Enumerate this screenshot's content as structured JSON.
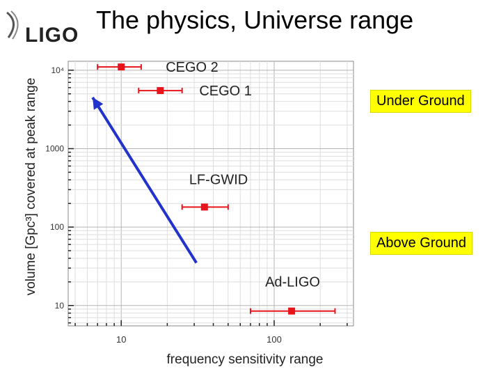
{
  "slide": {
    "title": "The physics, Universe range",
    "logo_text": "LIGO"
  },
  "tags": {
    "under_ground": "Under Ground",
    "above_ground": "Above Ground"
  },
  "colors": {
    "marker": "#e8141b",
    "arrow": "#2233cc",
    "tag_bg": "#ffff00"
  },
  "chart_data": {
    "type": "scatter",
    "title": "",
    "xlabel": "frequency sensitivity range",
    "ylabel": "volume [Gpc³] covered at peak range",
    "xscale": "log",
    "yscale": "log",
    "xlim": [
      4.5,
      330
    ],
    "ylim": [
      5.5,
      13000
    ],
    "x_ticks": [
      {
        "value": 10,
        "label": "10"
      },
      {
        "value": 100,
        "label": "100"
      }
    ],
    "y_ticks": [
      {
        "value": 10,
        "label": "10"
      },
      {
        "value": 100,
        "label": "100"
      },
      {
        "value": 1000,
        "label": "1000"
      },
      {
        "value": 10000,
        "label": "10⁴"
      }
    ],
    "grid": true,
    "points": [
      {
        "name": "CEGO 2",
        "x": 10,
        "y": 11000,
        "xerr": [
          7,
          13.5
        ]
      },
      {
        "name": "CEGO 1",
        "x": 18,
        "y": 5500,
        "xerr": [
          13,
          25
        ]
      },
      {
        "name": "LF-GWID",
        "x": 35,
        "y": 180,
        "xerr": [
          25,
          50
        ]
      },
      {
        "name": "Ad-LIGO",
        "x": 130,
        "y": 8.5,
        "xerr": [
          70,
          250
        ]
      }
    ],
    "trend_arrow": {
      "from": [
        31,
        35
      ],
      "to": [
        6.5,
        4500
      ]
    }
  }
}
